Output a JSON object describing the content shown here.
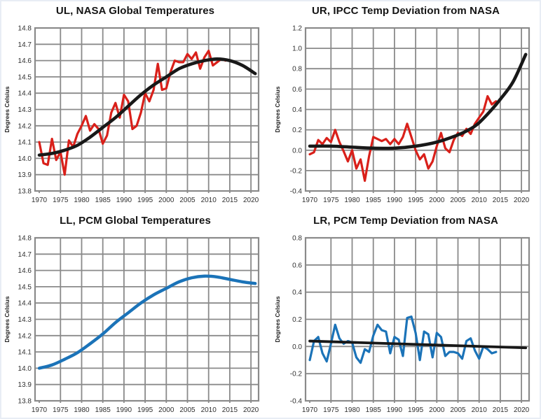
{
  "figure": {
    "layout": "2x2 grid of line charts",
    "background": "#ffffff",
    "grid_color": "#8a8a8a",
    "tick_label_color": "#303030",
    "title_color": "#141414"
  },
  "chart_data": [
    {
      "id": "ul",
      "type": "line",
      "title": "UL, NASA Global Temperatures",
      "ylabel": "Degrees Celsius",
      "xlim": [
        1969,
        2021.8
      ],
      "ylim": [
        13.8,
        14.8
      ],
      "grid": true,
      "legend": "none",
      "x_ticks": [
        1970,
        1975,
        1980,
        1985,
        1990,
        1995,
        2000,
        2005,
        2010,
        2015,
        2020
      ],
      "x_tick_labels": [
        "1970",
        "1975",
        "1980",
        "1985",
        "1990",
        "1995",
        "2000",
        "2005",
        "2010",
        "2015",
        "2020"
      ],
      "y_ticks": [
        13.8,
        13.9,
        14.0,
        14.1,
        14.2,
        14.3,
        14.4,
        14.5,
        14.6,
        14.7,
        14.8
      ],
      "y_tick_labels": [
        "13.8",
        "13.9",
        "14.0",
        "14.1",
        "14.2",
        "14.3",
        "14.4",
        "14.5",
        "14.6",
        "14.7",
        "14.8"
      ],
      "series": [
        {
          "name": "nasa-annual-temperature",
          "color": "#d9201a",
          "width": 3.2,
          "smooth": false,
          "x0": 1970,
          "values": [
            14.1,
            13.97,
            13.96,
            14.12,
            13.99,
            14.04,
            13.9,
            14.11,
            14.07,
            14.15,
            14.2,
            14.26,
            14.17,
            14.21,
            14.18,
            14.09,
            14.14,
            14.28,
            14.34,
            14.25,
            14.39,
            14.35,
            14.18,
            14.2,
            14.28,
            14.4,
            14.35,
            14.42,
            14.58,
            14.42,
            14.43,
            14.53,
            14.6,
            14.59,
            14.59,
            14.64,
            14.61,
            14.65,
            14.55,
            14.62,
            14.66,
            14.57,
            14.59,
            14.61,
            14.6
          ]
        },
        {
          "name": "smoothed-fit-curve",
          "color": "#181818",
          "width": 4.6,
          "smooth": true,
          "points": [
            [
              1970,
              14.02
            ],
            [
              1973,
              14.03
            ],
            [
              1976,
              14.05
            ],
            [
              1979,
              14.08
            ],
            [
              1982,
              14.13
            ],
            [
              1985,
              14.19
            ],
            [
              1988,
              14.25
            ],
            [
              1991,
              14.32
            ],
            [
              1994,
              14.39
            ],
            [
              1997,
              14.45
            ],
            [
              2000,
              14.5
            ],
            [
              2003,
              14.55
            ],
            [
              2006,
              14.58
            ],
            [
              2009,
              14.6
            ],
            [
              2012,
              14.61
            ],
            [
              2015,
              14.6
            ],
            [
              2018,
              14.57
            ],
            [
              2021,
              14.52
            ]
          ]
        }
      ]
    },
    {
      "id": "ur",
      "type": "line",
      "title": "UR, IPCC Temp Deviation from NASA",
      "ylabel": "Degrees Celsius",
      "xlim": [
        1969,
        2021.8
      ],
      "ylim": [
        -0.4,
        1.2
      ],
      "grid": true,
      "legend": "none",
      "x_ticks": [
        1970,
        1975,
        1980,
        1985,
        1990,
        1995,
        2000,
        2005,
        2010,
        2015,
        2020
      ],
      "x_tick_labels": [
        "1970",
        "1975",
        "1980",
        "1985",
        "1990",
        "1995",
        "2000",
        "2005",
        "2010",
        "2015",
        "2020"
      ],
      "y_ticks": [
        -0.4,
        -0.2,
        0.0,
        0.2,
        0.4,
        0.6,
        0.8,
        1.0,
        1.2
      ],
      "y_tick_labels": [
        "-0.4",
        "-0.2",
        "0.0",
        "0.2",
        "0.4",
        "0.6",
        "0.8",
        "1.0",
        "1.2"
      ],
      "series": [
        {
          "name": "ipcc-deviation-annual",
          "color": "#d9201a",
          "width": 3.2,
          "smooth": false,
          "x0": 1970,
          "values": [
            -0.04,
            -0.02,
            0.1,
            0.06,
            0.12,
            0.08,
            0.2,
            0.08,
            -0.01,
            -0.11,
            0.0,
            -0.18,
            -0.09,
            -0.3,
            -0.06,
            0.13,
            0.11,
            0.09,
            0.11,
            0.06,
            0.11,
            0.06,
            0.13,
            0.26,
            0.13,
            0.0,
            -0.09,
            -0.04,
            -0.18,
            -0.11,
            0.04,
            0.17,
            0.02,
            -0.02,
            0.1,
            0.17,
            0.14,
            0.21,
            0.16,
            0.26,
            0.32,
            0.38,
            0.53,
            0.45,
            0.48
          ]
        },
        {
          "name": "exponential-fit-curve",
          "color": "#181818",
          "width": 4.6,
          "smooth": true,
          "points": [
            [
              1970,
              0.04
            ],
            [
              1975,
              0.04
            ],
            [
              1980,
              0.03
            ],
            [
              1985,
              0.02
            ],
            [
              1990,
              0.02
            ],
            [
              1995,
              0.04
            ],
            [
              2000,
              0.08
            ],
            [
              2005,
              0.15
            ],
            [
              2008,
              0.21
            ],
            [
              2010,
              0.27
            ],
            [
              2013,
              0.4
            ],
            [
              2015,
              0.5
            ],
            [
              2018,
              0.67
            ],
            [
              2021,
              0.94
            ]
          ]
        }
      ]
    },
    {
      "id": "ll",
      "type": "line",
      "title": "LL, PCM Global Temperatures",
      "ylabel": "Degrees Celsius",
      "xlim": [
        1969,
        2021.8
      ],
      "ylim": [
        13.8,
        14.8
      ],
      "grid": true,
      "legend": "none",
      "x_ticks": [
        1970,
        1975,
        1980,
        1985,
        1990,
        1995,
        2000,
        2005,
        2010,
        2015,
        2020
      ],
      "x_tick_labels": [
        "1970",
        "1975",
        "1980",
        "1985",
        "1990",
        "1995",
        "2000",
        "2005",
        "2010",
        "2015",
        "2020"
      ],
      "y_ticks": [
        13.8,
        13.9,
        14.0,
        14.1,
        14.2,
        14.3,
        14.4,
        14.5,
        14.6,
        14.7,
        14.8
      ],
      "y_tick_labels": [
        "13.8",
        "13.9",
        "14.0",
        "14.1",
        "14.2",
        "14.3",
        "14.4",
        "14.5",
        "14.6",
        "14.7",
        "14.8"
      ],
      "series": [
        {
          "name": "pcm-model-temperature-curve",
          "color": "#1b73b8",
          "width": 4.4,
          "smooth": true,
          "points": [
            [
              1970,
              14.0
            ],
            [
              1973,
              14.02
            ],
            [
              1976,
              14.055
            ],
            [
              1979,
              14.095
            ],
            [
              1982,
              14.15
            ],
            [
              1985,
              14.21
            ],
            [
              1988,
              14.28
            ],
            [
              1991,
              14.34
            ],
            [
              1994,
              14.4
            ],
            [
              1997,
              14.45
            ],
            [
              2000,
              14.49
            ],
            [
              2003,
              14.53
            ],
            [
              2006,
              14.555
            ],
            [
              2009,
              14.565
            ],
            [
              2012,
              14.56
            ],
            [
              2015,
              14.545
            ],
            [
              2018,
              14.53
            ],
            [
              2021,
              14.52
            ]
          ]
        }
      ]
    },
    {
      "id": "lr",
      "type": "line",
      "title": "LR, PCM Temp Deviation from NASA",
      "ylabel": "Degrees Celsius",
      "xlim": [
        1969,
        2021.8
      ],
      "ylim": [
        -0.4,
        0.8
      ],
      "grid": true,
      "legend": "none",
      "x_ticks": [
        1970,
        1975,
        1980,
        1985,
        1990,
        1995,
        2000,
        2005,
        2010,
        2015,
        2020
      ],
      "x_tick_labels": [
        "1970",
        "1975",
        "1980",
        "1985",
        "1990",
        "1995",
        "2000",
        "2005",
        "2010",
        "2015",
        "2020"
      ],
      "y_ticks": [
        -0.4,
        -0.2,
        0.0,
        0.2,
        0.4,
        0.6,
        0.8
      ],
      "y_tick_labels": [
        "-0.4",
        "-0.2",
        "0.0",
        "0.2",
        "0.4",
        "0.6",
        "0.8"
      ],
      "series": [
        {
          "name": "pcm-deviation-annual",
          "color": "#1b73b8",
          "width": 3.2,
          "smooth": false,
          "x0": 1970,
          "values": [
            -0.1,
            0.04,
            0.07,
            -0.05,
            -0.11,
            0.02,
            0.16,
            0.06,
            0.02,
            0.04,
            0.03,
            -0.08,
            -0.12,
            -0.02,
            -0.04,
            0.08,
            0.16,
            0.12,
            0.11,
            -0.05,
            0.07,
            0.05,
            -0.07,
            0.21,
            0.22,
            0.1,
            -0.1,
            0.11,
            0.09,
            -0.08,
            0.1,
            0.07,
            -0.07,
            -0.04,
            -0.04,
            -0.05,
            -0.09,
            0.04,
            0.06,
            -0.03,
            -0.09,
            0.0,
            -0.02,
            -0.05,
            -0.04
          ]
        },
        {
          "name": "linear-trend-line",
          "color": "#181818",
          "width": 3.8,
          "smooth": false,
          "points": [
            [
              1970,
              0.04
            ],
            [
              2021,
              -0.01
            ]
          ]
        }
      ]
    }
  ]
}
